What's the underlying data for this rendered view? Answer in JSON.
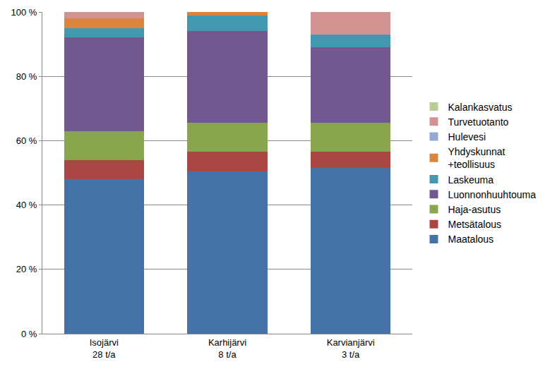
{
  "chart_data": {
    "type": "bar",
    "stacked": true,
    "grid": true,
    "legend": "right",
    "categories": [
      "Isojärvi\n28 t/a",
      "Karhijärvi\n8 t/a",
      "Karvianjärvi\n3 t/a"
    ],
    "ylim": [
      0,
      100
    ],
    "yticks": [
      {
        "value": 0,
        "label": "0 %"
      },
      {
        "value": 20,
        "label": "20 %"
      },
      {
        "value": 40,
        "label": "40 %"
      },
      {
        "value": 60,
        "label": "60 %"
      },
      {
        "value": 80,
        "label": "80 %"
      },
      {
        "value": 100,
        "label": "100 %"
      }
    ],
    "series": [
      {
        "name": "Maatalous",
        "color": "#4572A7",
        "values": [
          48,
          50.5,
          51.5
        ]
      },
      {
        "name": "Metsätalous",
        "color": "#AA4643",
        "values": [
          6,
          6,
          5
        ]
      },
      {
        "name": "Haja-asutus",
        "color": "#89A54E",
        "values": [
          9,
          9,
          9
        ]
      },
      {
        "name": "Luonnonhuuhtouma",
        "color": "#71588F",
        "values": [
          29,
          28.5,
          23.5
        ]
      },
      {
        "name": "Laskeuma",
        "color": "#4198AF",
        "values": [
          3,
          5,
          4
        ]
      },
      {
        "name": "Yhdyskunnat\n+teollisuus",
        "color": "#DB843D",
        "values": [
          3,
          1,
          0
        ]
      },
      {
        "name": "Hulevesi",
        "color": "#93A9CF",
        "values": [
          0,
          0,
          0
        ]
      },
      {
        "name": "Turvetuotanto",
        "color": "#D19392",
        "values": [
          2,
          0,
          7
        ]
      },
      {
        "name": "Kalankasvatus",
        "color": "#B9CD96",
        "values": [
          0,
          0,
          0
        ]
      }
    ]
  }
}
